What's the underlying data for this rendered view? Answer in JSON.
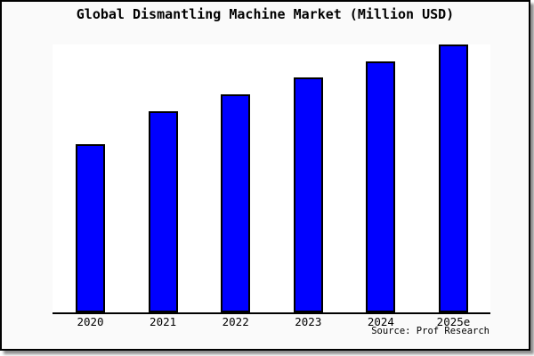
{
  "title": "Global Dismantling Machine Market (Million USD)",
  "source": "Source: Prof Research",
  "colors": {
    "bar_fill": "#0000ff",
    "bar_border": "#000000",
    "figure_background": "#fafafa",
    "plot_background": "#ffffff",
    "panel_border": "#000000",
    "text": "#000000"
  },
  "chart_data": {
    "type": "bar",
    "title": "Global Dismantling Machine Market (Million USD)",
    "categories": [
      "2020",
      "2021",
      "2022",
      "2023",
      "2024",
      "2025e"
    ],
    "values": [
      62.8,
      75.1,
      81.4,
      87.7,
      93.7,
      100
    ],
    "value_note": "Chart shows no y-axis ticks or numeric labels; values are relative bar heights as a percentage of the tallest bar (2025e = 100).",
    "xlabel": "",
    "ylabel": "",
    "ylim": [
      0,
      100
    ],
    "grid": false,
    "legend": null,
    "bar_color": "#0000ff",
    "source_caption": "Source: Prof Research"
  }
}
